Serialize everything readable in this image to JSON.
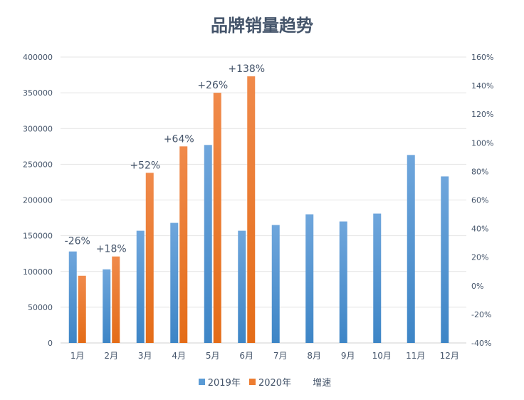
{
  "chart_data": {
    "type": "bar",
    "title": "品牌销量趋势",
    "categories": [
      "1月",
      "2月",
      "3月",
      "4月",
      "5月",
      "6月",
      "7月",
      "8月",
      "9月",
      "10月",
      "11月",
      "12月"
    ],
    "series": [
      {
        "name": "2019年",
        "color": "#5b9bd5",
        "values": [
          128000,
          103000,
          157000,
          168000,
          277000,
          157000,
          165000,
          180000,
          170000,
          181000,
          263000,
          233000
        ]
      },
      {
        "name": "2020年",
        "color": "#ed7d31",
        "values": [
          94000,
          121000,
          238000,
          275000,
          350000,
          373000,
          null,
          null,
          null,
          null,
          null,
          null
        ]
      },
      {
        "name": "增速",
        "axis": "right",
        "values": [
          -26,
          18,
          52,
          64,
          26,
          138,
          null,
          null,
          null,
          null,
          null,
          null
        ],
        "labels": [
          "-26%",
          "+18%",
          "+52%",
          "+64%",
          "+26%",
          "+138%"
        ]
      }
    ],
    "ylim": [
      0,
      400000
    ],
    "yticks": [
      "0",
      "50000",
      "100000",
      "150000",
      "200000",
      "250000",
      "300000",
      "350000",
      "400000"
    ],
    "y2lim": [
      -40,
      160
    ],
    "y2ticks": [
      "-40%",
      "-20%",
      "0%",
      "20%",
      "40%",
      "60%",
      "80%",
      "100%",
      "120%",
      "140%",
      "160%"
    ],
    "grid": true,
    "legend": "bottom"
  }
}
